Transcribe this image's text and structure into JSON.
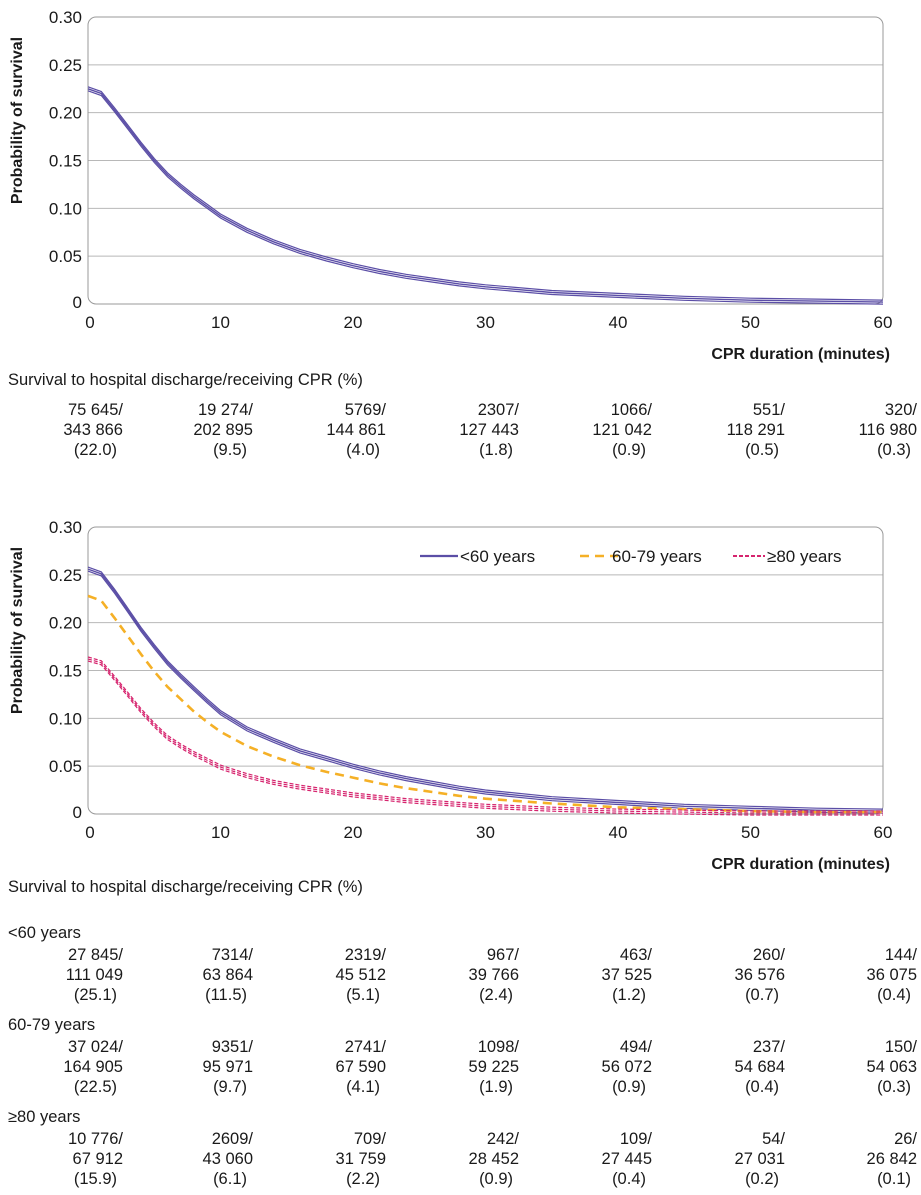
{
  "chart_data": [
    {
      "type": "line",
      "ylabel": "Probability of survival",
      "xlabel": "CPR duration (minutes)",
      "xlim": [
        0,
        60
      ],
      "ylim": [
        0,
        0.3
      ],
      "xticks": [
        "0",
        "10",
        "20",
        "30",
        "40",
        "50",
        "60"
      ],
      "yticks": [
        "0",
        "0.05",
        "0.10",
        "0.15",
        "0.20",
        "0.25",
        "0.30"
      ],
      "grid": true,
      "x": [
        0,
        1,
        2,
        3,
        4,
        5,
        6,
        7,
        8,
        9,
        10,
        12,
        14,
        16,
        18,
        20,
        22,
        24,
        26,
        28,
        30,
        35,
        40,
        45,
        50,
        55,
        60
      ],
      "series": [
        {
          "color": "#5b4ea6",
          "style": "solid-ci",
          "values": [
            0.225,
            0.22,
            0.203,
            0.185,
            0.167,
            0.15,
            0.135,
            0.123,
            0.112,
            0.102,
            0.092,
            0.077,
            0.065,
            0.055,
            0.047,
            0.04,
            0.034,
            0.029,
            0.025,
            0.021,
            0.018,
            0.012,
            0.009,
            0.006,
            0.004,
            0.003,
            0.002
          ]
        }
      ],
      "table": {
        "caption": "Survival to hospital discharge/receiving CPR (%)",
        "rows": [
          {
            "group": "",
            "cells": [
              [
                "75 645/",
                "343 866",
                "(22.0)"
              ],
              [
                "19 274/",
                "202 895",
                "(9.5)"
              ],
              [
                "5769/",
                "144 861",
                "(4.0)"
              ],
              [
                "2307/",
                "127 443",
                "(1.8)"
              ],
              [
                "1066/",
                "121 042",
                "(0.9)"
              ],
              [
                "551/",
                "118 291",
                "(0.5)"
              ],
              [
                "320/",
                "116 980",
                "(0.3)"
              ]
            ]
          }
        ]
      }
    },
    {
      "type": "line",
      "ylabel": "Probability of survival",
      "xlabel": "CPR duration (minutes)",
      "xlim": [
        0,
        60
      ],
      "ylim": [
        0,
        0.3
      ],
      "xticks": [
        "0",
        "10",
        "20",
        "30",
        "40",
        "50",
        "60"
      ],
      "yticks": [
        "0",
        "0.05",
        "0.10",
        "0.15",
        "0.20",
        "0.25",
        "0.30"
      ],
      "grid": true,
      "legend": "top-right",
      "x": [
        0,
        1,
        2,
        3,
        4,
        5,
        6,
        7,
        8,
        9,
        10,
        12,
        14,
        16,
        18,
        20,
        22,
        24,
        26,
        28,
        30,
        35,
        40,
        45,
        50,
        55,
        60
      ],
      "series": [
        {
          "name": "<60 years",
          "color": "#5b4ea6",
          "style": "solid-ci",
          "values": [
            0.256,
            0.251,
            0.233,
            0.213,
            0.193,
            0.175,
            0.158,
            0.144,
            0.131,
            0.118,
            0.106,
            0.089,
            0.077,
            0.066,
            0.058,
            0.05,
            0.043,
            0.037,
            0.032,
            0.027,
            0.023,
            0.016,
            0.012,
            0.008,
            0.006,
            0.004,
            0.003
          ]
        },
        {
          "name": "60-79 years",
          "color": "#f5b026",
          "style": "dashed",
          "values": [
            0.228,
            0.223,
            0.205,
            0.186,
            0.167,
            0.149,
            0.133,
            0.12,
            0.107,
            0.096,
            0.086,
            0.071,
            0.06,
            0.051,
            0.044,
            0.038,
            0.032,
            0.027,
            0.023,
            0.019,
            0.016,
            0.011,
            0.007,
            0.005,
            0.003,
            0.002,
            0.002
          ]
        },
        {
          "name": "≥80 years",
          "color": "#d6246e",
          "style": "dotted-ci",
          "values": [
            0.162,
            0.158,
            0.142,
            0.125,
            0.108,
            0.093,
            0.08,
            0.071,
            0.063,
            0.056,
            0.049,
            0.04,
            0.033,
            0.028,
            0.024,
            0.02,
            0.017,
            0.014,
            0.012,
            0.01,
            0.008,
            0.005,
            0.003,
            0.002,
            0.001,
            0.001,
            0.001
          ]
        }
      ],
      "table": {
        "caption": "Survival to hospital discharge/receiving CPR (%)",
        "rows": [
          {
            "group": "<60 years",
            "cells": [
              [
                "27 845/",
                "111 049",
                "(25.1)"
              ],
              [
                "7314/",
                "63 864",
                "(11.5)"
              ],
              [
                "2319/",
                "45 512",
                "(5.1)"
              ],
              [
                "967/",
                "39 766",
                "(2.4)"
              ],
              [
                "463/",
                "37 525",
                "(1.2)"
              ],
              [
                "260/",
                "36 576",
                "(0.7)"
              ],
              [
                "144/",
                "36 075",
                "(0.4)"
              ]
            ]
          },
          {
            "group": "60-79 years",
            "cells": [
              [
                "37 024/",
                "164 905",
                "(22.5)"
              ],
              [
                "9351/",
                "95 971",
                "(9.7)"
              ],
              [
                "2741/",
                "67 590",
                "(4.1)"
              ],
              [
                "1098/",
                "59 225",
                "(1.9)"
              ],
              [
                "494/",
                "56 072",
                "(0.9)"
              ],
              [
                "237/",
                "54 684",
                "(0.4)"
              ],
              [
                "150/",
                "54 063",
                "(0.3)"
              ]
            ]
          },
          {
            "group": "≥80 years",
            "cells": [
              [
                "10 776/",
                "67 912",
                "(15.9)"
              ],
              [
                "2609/",
                "43 060",
                "(6.1)"
              ],
              [
                "709/",
                "31 759",
                "(2.2)"
              ],
              [
                "242/",
                "28 452",
                "(0.9)"
              ],
              [
                "109/",
                "27 445",
                "(0.4)"
              ],
              [
                "54/",
                "27 031",
                "(0.2)"
              ],
              [
                "26/",
                "26 842",
                "(0.1)"
              ]
            ]
          }
        ]
      }
    }
  ]
}
